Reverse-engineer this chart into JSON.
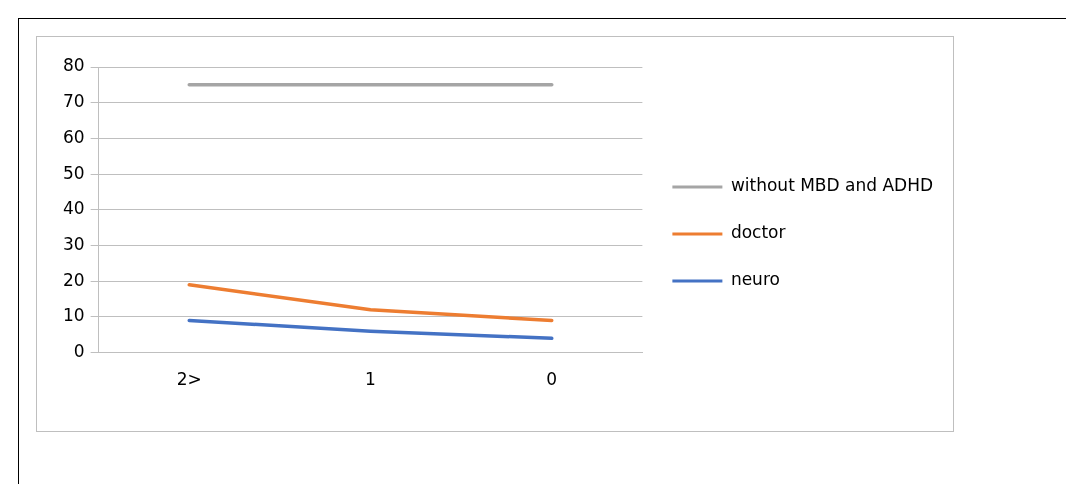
{
  "chart_data": {
    "type": "line",
    "categories": [
      "2>",
      "1",
      "0"
    ],
    "series": [
      {
        "name": "without MBD and ADHD",
        "color": "#a5a5a5",
        "values": [
          75,
          75,
          75
        ]
      },
      {
        "name": "doctor",
        "color": "#ed7d31",
        "values": [
          19,
          12,
          9
        ]
      },
      {
        "name": "neuro",
        "color": "#4472c4",
        "values": [
          9,
          6,
          4
        ]
      }
    ],
    "ylim": [
      0,
      80
    ],
    "yticks": [
      0,
      10,
      20,
      30,
      40,
      50,
      60,
      70,
      80
    ],
    "grid": "y",
    "legend": "right",
    "marker": "none",
    "line_style": "solid"
  }
}
